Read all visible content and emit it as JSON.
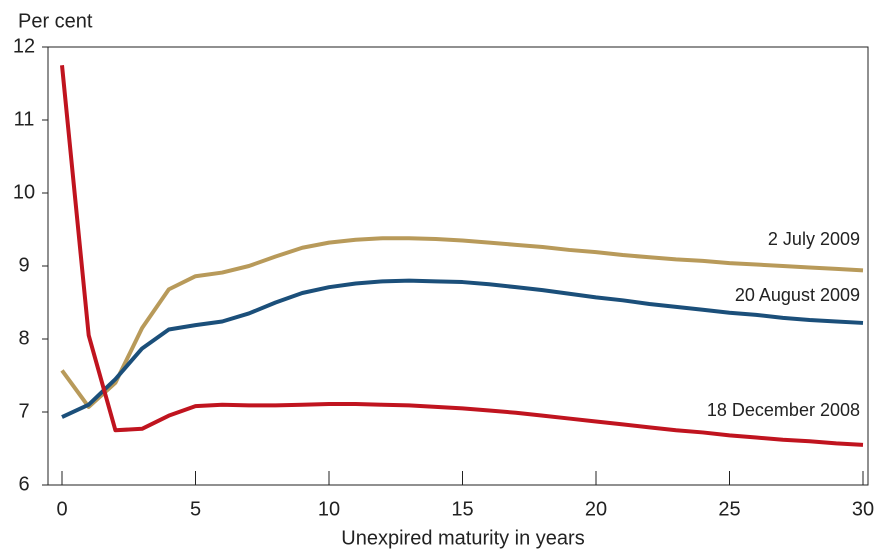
{
  "chart_data": {
    "type": "line",
    "y_label": "Per cent",
    "x_label": "Unexpired maturity in years",
    "x": [
      0,
      1,
      2,
      3,
      4,
      5,
      6,
      7,
      8,
      9,
      10,
      11,
      12,
      13,
      14,
      15,
      16,
      17,
      18,
      19,
      20,
      21,
      22,
      23,
      24,
      25,
      26,
      27,
      28,
      29,
      30
    ],
    "xlim": [
      0,
      30
    ],
    "xticks": [
      0,
      5,
      10,
      15,
      20,
      25,
      30
    ],
    "ylim": [
      6,
      12
    ],
    "yticks": [
      6,
      7,
      8,
      9,
      10,
      11,
      12
    ],
    "series": [
      {
        "name": "2 July 2009",
        "color": "#b89a5a",
        "values": [
          7.57,
          7.07,
          7.4,
          8.15,
          8.68,
          8.86,
          8.91,
          9.0,
          9.13,
          9.25,
          9.32,
          9.36,
          9.38,
          9.38,
          9.37,
          9.35,
          9.32,
          9.29,
          9.26,
          9.22,
          9.19,
          9.15,
          9.12,
          9.09,
          9.07,
          9.04,
          9.02,
          9.0,
          8.98,
          8.96,
          8.94
        ]
      },
      {
        "name": "20 August 2009",
        "color": "#1b4f7a",
        "values": [
          6.93,
          7.1,
          7.45,
          7.87,
          8.13,
          8.19,
          8.24,
          8.35,
          8.5,
          8.63,
          8.71,
          8.76,
          8.79,
          8.8,
          8.79,
          8.78,
          8.75,
          8.71,
          8.67,
          8.62,
          8.57,
          8.53,
          8.48,
          8.44,
          8.4,
          8.36,
          8.33,
          8.29,
          8.26,
          8.24,
          8.22
        ]
      },
      {
        "name": "18 December 2008",
        "color": "#c0141f",
        "values": [
          11.75,
          8.05,
          6.75,
          6.77,
          6.95,
          7.08,
          7.1,
          7.09,
          7.09,
          7.1,
          7.11,
          7.11,
          7.1,
          7.09,
          7.07,
          7.05,
          7.02,
          6.99,
          6.95,
          6.91,
          6.87,
          6.83,
          6.79,
          6.75,
          6.72,
          6.68,
          6.65,
          6.62,
          6.6,
          6.57,
          6.55
        ]
      }
    ]
  }
}
